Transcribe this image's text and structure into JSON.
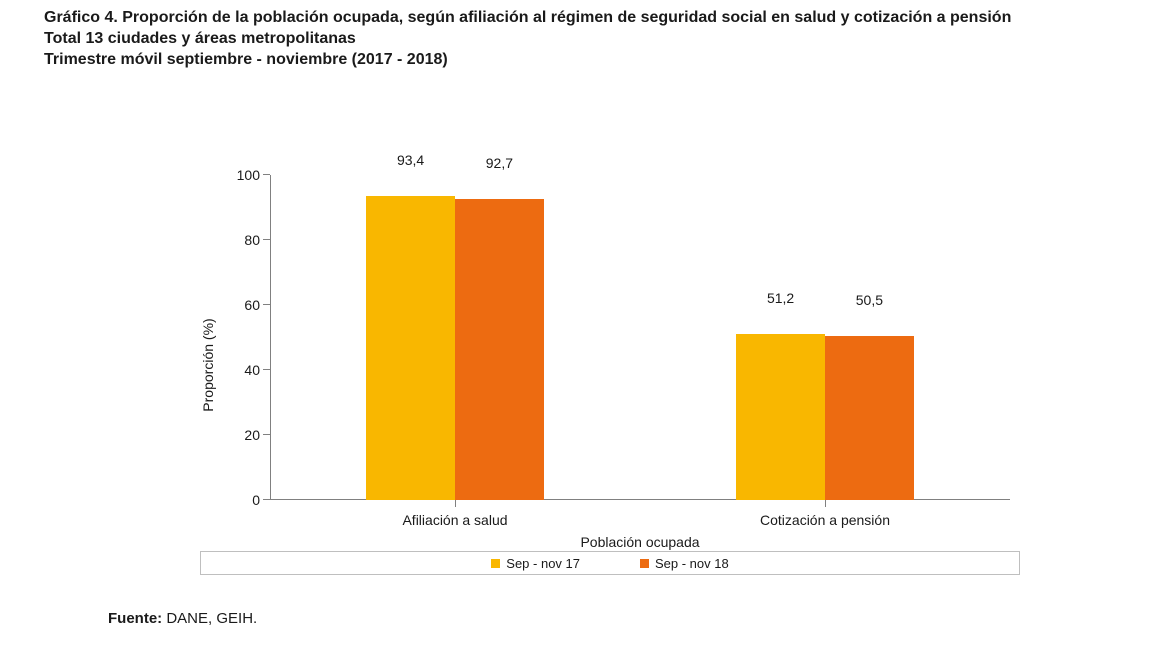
{
  "title": {
    "line1": "Gráfico 4. Proporción de la población ocupada, según afiliación al régimen de seguridad social en salud y cotización a pensión",
    "line2": "Total 13 ciudades y áreas metropolitanas",
    "line3": "Trimestre móvil septiembre - noviembre (2017 - 2018)",
    "fontsize": 16,
    "fontweight": "bold",
    "color": "#1a1a1a"
  },
  "chart": {
    "type": "bar",
    "background_color": "#ffffff",
    "axis_color": "#808080",
    "ylabel": "Proporción (%)",
    "xlabel": "Población ocupada",
    "label_fontsize": 14,
    "label_color": "#1a1a1a",
    "ylim": [
      0,
      100
    ],
    "ytick_step": 20,
    "yticks": [
      0,
      20,
      40,
      60,
      80,
      100
    ],
    "categories": [
      "Afiliación a salud",
      "Cotización a pensión"
    ],
    "series": [
      {
        "name": "Sep - nov 17",
        "color": "#f9b700",
        "values": [
          93.4,
          51.2
        ],
        "labels": [
          "93,4",
          "51,2"
        ]
      },
      {
        "name": "Sep - nov 18",
        "color": "#ed6b11",
        "values": [
          92.7,
          50.5
        ],
        "labels": [
          "92,7",
          "50,5"
        ]
      }
    ],
    "bar_width_pct": 12,
    "group_gap_pct": 0,
    "value_label_fontsize": 14,
    "legend_border_color": "#bfbfbf",
    "legend_fontsize": 13
  },
  "source": {
    "label": "Fuente:",
    "value": "DANE, GEIH.",
    "fontsize": 15
  }
}
